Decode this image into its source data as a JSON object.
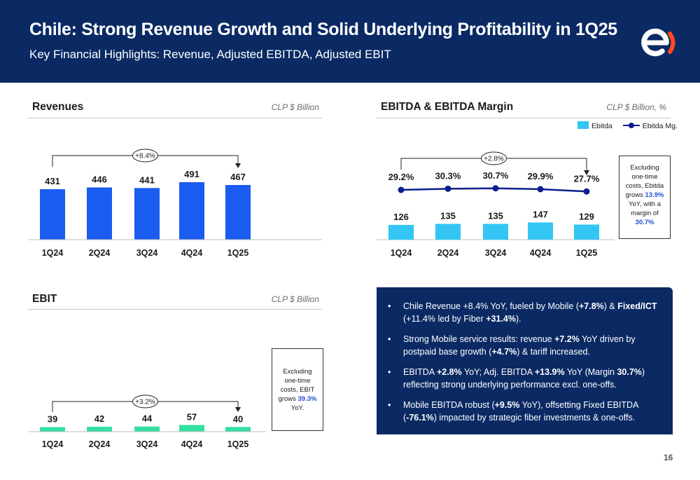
{
  "header": {
    "title": "Chile: Strong Revenue Growth and Solid Underlying Profitability in 1Q25",
    "subtitle": "Key Financial Highlights: Revenue, Adjusted EBITDA, Adjusted EBIT"
  },
  "colors": {
    "header_bg": "#0b2a64",
    "bar_blue": "#1a5cf0",
    "bar_cyan": "#33c5f3",
    "bar_green": "#34e0a1",
    "line_navy": "#0b1f8c",
    "highlight": "#1f4fd6"
  },
  "revenues": {
    "title": "Revenues",
    "unit": "CLP $ Billion"
  },
  "ebitda": {
    "title": "EBITDA & EBITDA Margin",
    "unit": "CLP $ Billion, %",
    "note": {
      "l1": "Excluding",
      "l2": "one-time",
      "l3": "costs, Ebitda",
      "l4a": "grows ",
      "l4b": "13.9%",
      "l5": "YoY, with a",
      "l6": "margin of",
      "l7": "30.7%"
    }
  },
  "ebit": {
    "title": "EBIT",
    "unit": "CLP $ Billion",
    "note": {
      "l1": "Excluding",
      "l2": "one-time",
      "l3": "costs, EBIT",
      "l4a": "grows ",
      "l4b": "39.3%",
      "l5": "YoY."
    }
  },
  "bullets": [
    {
      "a": "Chile Revenue +8.4% YoY, fueled by Mobile (",
      "b": "+7.8%",
      "c": ") & ",
      "d": "Fixed/ICT",
      "e": " (+11.4% led by Fiber ",
      "f": "+31.4%",
      "g": ")."
    },
    {
      "a": "Strong Mobile service results: revenue ",
      "b": "+7.2%",
      "c": " YoY driven by postpaid base growth (",
      "d": "+4.7%",
      "e": ") & tariff increased.",
      "f": "",
      "g": ""
    },
    {
      "a": "EBITDA ",
      "b": "+2.8%",
      "c": " YoY; Adj. EBITDA ",
      "d": "+13.9%",
      "e": " YoY (Margin ",
      "f": "30.7%",
      "g": ") reflecting strong underlying performance excl. one-offs."
    },
    {
      "a": "Mobile EBITDA robust (",
      "b": "+9.5%",
      "c": " YoY), offsetting Fixed EBITDA (",
      "d": "-76.1%",
      "e": ") impacted by strategic fiber investments & one-offs.",
      "f": "",
      "g": ""
    }
  ],
  "page_number": "16",
  "chart_data": [
    {
      "type": "bar",
      "title": "Revenues",
      "categories": [
        "1Q24",
        "2Q24",
        "3Q24",
        "4Q24",
        "1Q25"
      ],
      "values": [
        431,
        446,
        441,
        491,
        467
      ],
      "value_labels": [
        "431",
        "446",
        "441",
        "491",
        "467"
      ],
      "growth_label": "+8.4%",
      "ylim": [
        0,
        600
      ]
    },
    {
      "type": "bar",
      "title": "EBITDA & EBITDA Margin",
      "categories": [
        "1Q24",
        "2Q24",
        "3Q24",
        "4Q24",
        "1Q25"
      ],
      "series": [
        {
          "name": "Ebitda",
          "values": [
            126,
            135,
            135,
            147,
            129
          ],
          "value_labels": [
            "126",
            "135",
            "135",
            "147",
            "129"
          ]
        },
        {
          "name": "Ebitda Mg.",
          "values": [
            29.2,
            30.3,
            30.7,
            29.9,
            27.7
          ],
          "value_labels": [
            "29.2%",
            "30.3%",
            "30.7%",
            "29.9%",
            "27.7%"
          ]
        }
      ],
      "legend": [
        "Ebitda",
        "Ebitda Mg."
      ],
      "legend_position": "top-right",
      "growth_label": "+2.8%",
      "ylim": [
        0,
        600
      ]
    },
    {
      "type": "bar",
      "title": "EBIT",
      "categories": [
        "1Q24",
        "2Q24",
        "3Q24",
        "4Q24",
        "1Q25"
      ],
      "values": [
        39,
        42,
        44,
        57,
        40
      ],
      "value_labels": [
        "39",
        "42",
        "44",
        "57",
        "40"
      ],
      "growth_label": "+3.2%",
      "ylim": [
        0,
        600
      ]
    }
  ]
}
